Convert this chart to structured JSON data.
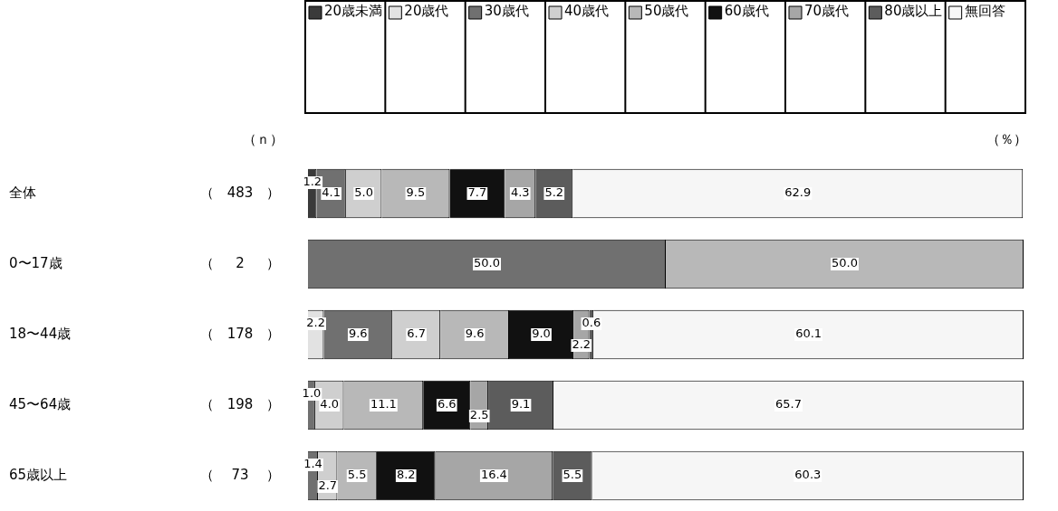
{
  "chart_data": {
    "type": "bar",
    "orientation": "horizontal",
    "stacked": true,
    "legend": "top",
    "tick_labels": false,
    "categories": [
      "全体",
      "0〜17歳",
      "18〜44歳",
      "45〜64歳",
      "65歳以上"
    ],
    "xlim": [
      0,
      100
    ],
    "series": [
      {
        "name": "20歳未満",
        "color": "#3a3a3a",
        "values": [
          1.2,
          null,
          null,
          null,
          null
        ],
        "value_labels": [
          "1.2",
          null,
          null,
          null,
          null
        ]
      },
      {
        "name": "20歳代",
        "color": "#e2e2e2",
        "values": [
          null,
          null,
          2.2,
          null,
          null
        ],
        "value_labels": [
          null,
          null,
          "2.2",
          null,
          null
        ]
      },
      {
        "name": "30歳代",
        "color": "#707070",
        "values": [
          4.1,
          50.0,
          9.6,
          1.0,
          1.4
        ],
        "value_labels": [
          "4.1",
          "50.0",
          "9.6",
          "1.0",
          "1.4"
        ]
      },
      {
        "name": "40歳代",
        "color": "#cfcfcf",
        "values": [
          5.0,
          null,
          6.7,
          4.0,
          2.7
        ],
        "value_labels": [
          "5.0",
          null,
          "6.7",
          "4.0",
          "2.7"
        ]
      },
      {
        "name": "50歳代",
        "color": "#b8b8b8",
        "values": [
          9.5,
          50.0,
          9.6,
          11.1,
          5.5
        ],
        "value_labels": [
          "9.5",
          "50.0",
          "9.6",
          "11.1",
          "5.5"
        ]
      },
      {
        "name": "60歳代",
        "color": "#111111",
        "values": [
          7.7,
          null,
          9.0,
          6.6,
          8.2
        ],
        "value_labels": [
          "7.7",
          null,
          "9.0",
          "6.6",
          "8.2"
        ]
      },
      {
        "name": "70歳代",
        "color": "#a6a6a6",
        "values": [
          4.3,
          null,
          2.2,
          2.5,
          16.4
        ],
        "value_labels": [
          "4.3",
          null,
          "2.2",
          "2.5",
          "16.4"
        ]
      },
      {
        "name": "80歳以上",
        "color": "#5c5c5c",
        "values": [
          5.2,
          null,
          0.6,
          9.1,
          5.5
        ],
        "value_labels": [
          "5.2",
          null,
          "0.6",
          "9.1",
          "5.5"
        ]
      },
      {
        "name": "無回答",
        "color": "#f6f6f6",
        "values": [
          62.9,
          null,
          60.1,
          65.7,
          60.3
        ],
        "value_labels": [
          "62.9",
          null,
          "60.1",
          "65.7",
          "60.3"
        ]
      }
    ],
    "annotations": [
      "（ｎ）",
      "（％）",
      "（   483   ）",
      "（     2     ）",
      "（   178   ）",
      "（   198   ）",
      "（    73    ）"
    ]
  }
}
